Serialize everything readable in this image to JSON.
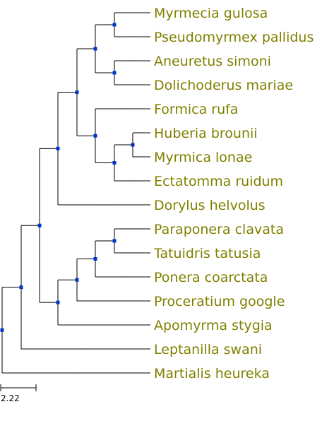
{
  "tree": {
    "leaves": [
      {
        "id": "L1",
        "label": "Myrmecia gulosa"
      },
      {
        "id": "L2",
        "label": "Pseudomyrmex pallidus"
      },
      {
        "id": "L3",
        "label": "Aneuretus simoni"
      },
      {
        "id": "L4",
        "label": "Dolichoderus mariae"
      },
      {
        "id": "L5",
        "label": "Formica rufa"
      },
      {
        "id": "L6",
        "label": "Huberia brounii"
      },
      {
        "id": "L7",
        "label": "Myrmica lonae"
      },
      {
        "id": "L8",
        "label": "Ectatomma ruidum"
      },
      {
        "id": "L9",
        "label": "Dorylus helvolus"
      },
      {
        "id": "L10",
        "label": "Paraponera clavata"
      },
      {
        "id": "L11",
        "label": "Tatuidris tatusia"
      },
      {
        "id": "L12",
        "label": "Ponera coarctata"
      },
      {
        "id": "L13",
        "label": "Proceratium google"
      },
      {
        "id": "L14",
        "label": "Apomyrma stygia"
      },
      {
        "id": "L15",
        "label": "Leptanilla swani"
      },
      {
        "id": "L16",
        "label": "Martialis heureka"
      }
    ],
    "label_color": "#808000",
    "node_color": "#0033cc"
  },
  "scale_bar": {
    "label": "2.22"
  }
}
